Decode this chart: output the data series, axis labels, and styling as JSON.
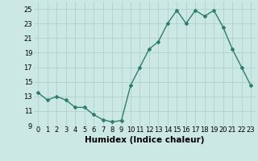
{
  "x": [
    0,
    1,
    2,
    3,
    4,
    5,
    6,
    7,
    8,
    9,
    10,
    11,
    12,
    13,
    14,
    15,
    16,
    17,
    18,
    19,
    20,
    21,
    22,
    23
  ],
  "y": [
    13.5,
    12.5,
    13.0,
    12.5,
    11.5,
    11.5,
    10.5,
    9.8,
    9.5,
    9.7,
    14.5,
    17.0,
    19.5,
    20.5,
    23.0,
    24.8,
    23.0,
    24.8,
    24.0,
    24.8,
    22.5,
    19.5,
    17.0,
    14.5
  ],
  "xlabel": "Humidex (Indice chaleur)",
  "ylim": [
    9,
    26
  ],
  "xlim": [
    -0.5,
    23.5
  ],
  "yticks": [
    9,
    11,
    13,
    15,
    17,
    19,
    21,
    23,
    25
  ],
  "xtick_labels": [
    "0",
    "1",
    "2",
    "3",
    "4",
    "5",
    "6",
    "7",
    "8",
    "9",
    "10",
    "11",
    "12",
    "13",
    "14",
    "15",
    "16",
    "17",
    "18",
    "19",
    "20",
    "21",
    "22",
    "23"
  ],
  "line_color": "#2e7d6e",
  "marker": "D",
  "marker_size": 2.0,
  "bg_color": "#cce8e4",
  "grid_color": "#aaccc8",
  "line_width": 1.0,
  "xlabel_fontsize": 7.5,
  "tick_fontsize": 6.0
}
